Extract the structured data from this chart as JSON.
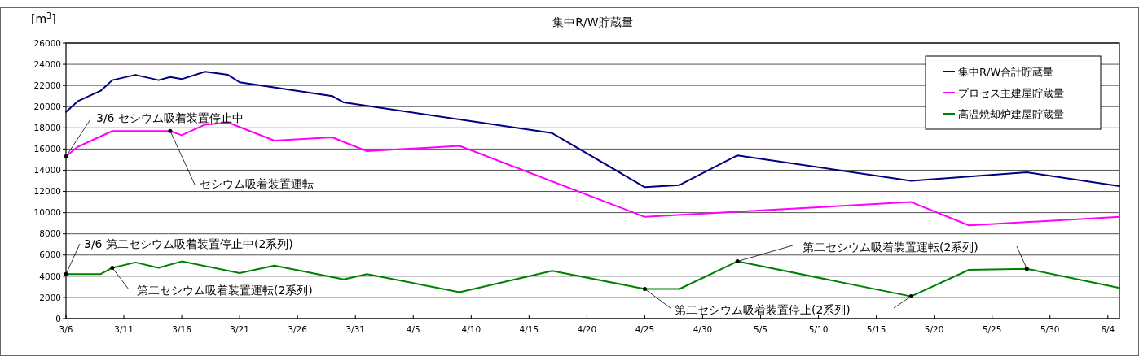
{
  "chart_data": {
    "type": "line",
    "title": "集中R/W貯蔵量",
    "ylabel": "[m$^{3}$]",
    "xlim": [
      "--03-06",
      "--06-05"
    ],
    "xticks": [
      {
        "value": "--03-06",
        "label": "3/6"
      },
      {
        "value": "--03-11",
        "label": "3/11"
      },
      {
        "value": "--03-16",
        "label": "3/16"
      },
      {
        "value": "--03-21",
        "label": "3/21"
      },
      {
        "value": "--03-26",
        "label": "3/26"
      },
      {
        "value": "--03-31",
        "label": "3/31"
      },
      {
        "value": "--04-05",
        "label": "4/5"
      },
      {
        "value": "--04-10",
        "label": "4/10"
      },
      {
        "value": "--04-15",
        "label": "4/15"
      },
      {
        "value": "--04-20",
        "label": "4/20"
      },
      {
        "value": "--04-25",
        "label": "4/25"
      },
      {
        "value": "--04-30",
        "label": "4/30"
      },
      {
        "value": "--05-05",
        "label": "5/5"
      },
      {
        "value": "--05-10",
        "label": "5/10"
      },
      {
        "value": "--05-15",
        "label": "5/15"
      },
      {
        "value": "--05-20",
        "label": "5/20"
      },
      {
        "value": "--05-25",
        "label": "5/25"
      },
      {
        "value": "--05-30",
        "label": "5/30"
      },
      {
        "value": "--06-04",
        "label": "6/4"
      }
    ],
    "ylim": [
      0,
      26000
    ],
    "yticks": [
      0,
      2000,
      4000,
      6000,
      8000,
      10000,
      12000,
      14000,
      16000,
      18000,
      20000,
      22000,
      24000,
      26000
    ],
    "grid": "y",
    "legend": "top right",
    "marker": "none",
    "line_style": "solid",
    "series": [
      {
        "name": "集中R/W合計貯蔵量",
        "color": "#000080",
        "x": [
          "--03-06",
          "--03-07",
          "--03-09",
          "--03-10",
          "--03-12",
          "--03-14",
          "--03-15",
          "--03-16",
          "--03-18",
          "--03-20",
          "--03-21",
          "--03-29",
          "--03-30",
          "--04-17",
          "--04-25",
          "--04-28",
          "--05-03",
          "--05-18",
          "--05-28",
          "--06-05"
        ],
        "values": [
          19500,
          20500,
          21500,
          22500,
          23000,
          22500,
          22800,
          22600,
          23300,
          23000,
          22300,
          21000,
          20400,
          17500,
          12400,
          12600,
          15400,
          13000,
          13800,
          12500
        ]
      },
      {
        "name": "プロセス主建屋貯蔵量",
        "color": "#ff00ff",
        "x": [
          "--03-06",
          "--03-07",
          "--03-10",
          "--03-15",
          "--03-16",
          "--03-18",
          "--03-20",
          "--03-24",
          "--03-29",
          "--04-01",
          "--04-09",
          "--04-25",
          "--05-18",
          "--05-23",
          "--06-05"
        ],
        "values": [
          15300,
          16200,
          17700,
          17700,
          17300,
          18300,
          18500,
          16800,
          17100,
          15800,
          16300,
          9600,
          11000,
          8800,
          9600
        ]
      },
      {
        "name": "高温焼却炉建屋貯蔵量",
        "color": "#008000",
        "x": [
          "--03-06",
          "--03-09",
          "--03-10",
          "--03-12",
          "--03-14",
          "--03-16",
          "--03-21",
          "--03-24",
          "--03-30",
          "--04-01",
          "--04-09",
          "--04-17",
          "--04-25",
          "--04-28",
          "--05-03",
          "--05-18",
          "--05-23",
          "--05-28",
          "--06-05"
        ],
        "values": [
          4200,
          4200,
          4800,
          5300,
          4800,
          5400,
          4300,
          5000,
          3700,
          4200,
          2500,
          4500,
          2800,
          2800,
          5400,
          2100,
          4600,
          4700,
          2900
        ]
      }
    ],
    "annotations": [
      {
        "text": "3/6  セシウム吸着装置停止中",
        "x": "--03-06",
        "y": 15300
      },
      {
        "text": "セシウム吸着装置運転",
        "x": "--03-15",
        "y": 17700
      },
      {
        "text": "3/6 第二セシウム吸着装置停止中(2系列)",
        "x": "--03-06",
        "y": 4200
      },
      {
        "text": "第二セシウム吸着装置運転(2系列)",
        "x": "--03-10",
        "y": 4800
      },
      {
        "text": "第二セシウム吸着装置停止(2系列)",
        "x": "--04-25",
        "y": 2800
      },
      {
        "text": "第二セシウム吸着装置運転(2系列)",
        "x": "--05-03",
        "y": 5400
      }
    ]
  }
}
